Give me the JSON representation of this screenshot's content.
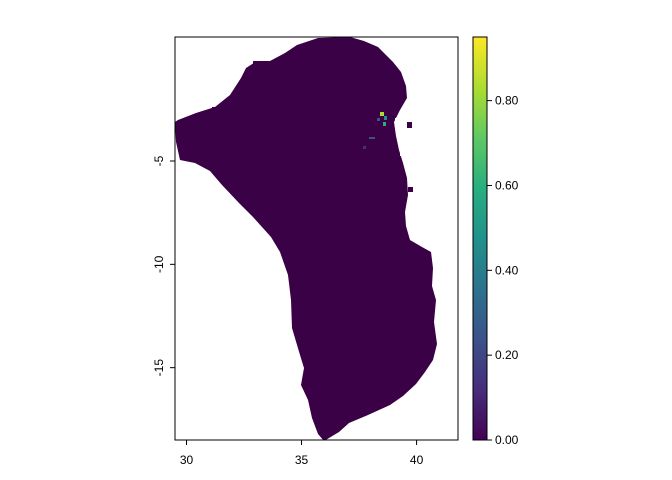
{
  "map": {
    "type": "raster",
    "xlim": [
      29.5,
      41.8
    ],
    "ylim": [
      -18.5,
      1.0
    ],
    "x_ticks": [
      {
        "value": 30,
        "label": "30"
      },
      {
        "value": 35,
        "label": "35"
      },
      {
        "value": 40,
        "label": "40"
      }
    ],
    "y_ticks": [
      {
        "value": -5,
        "label": "-5"
      },
      {
        "value": -10,
        "label": "-10"
      },
      {
        "value": -15,
        "label": "-15"
      }
    ],
    "region_fill_value": 0.0,
    "colors": {
      "low": "#440154",
      "high": "#fde725",
      "axis": "#000000",
      "background": "#ffffff"
    }
  },
  "legend": {
    "range": [
      0.0,
      0.95
    ],
    "palette": "viridis",
    "ticks": [
      {
        "value": 0.0,
        "label": "0.00"
      },
      {
        "value": 0.2,
        "label": "0.20"
      },
      {
        "value": 0.4,
        "label": "0.40"
      },
      {
        "value": 0.6,
        "label": "0.60"
      },
      {
        "value": 0.8,
        "label": "0.80"
      }
    ]
  }
}
